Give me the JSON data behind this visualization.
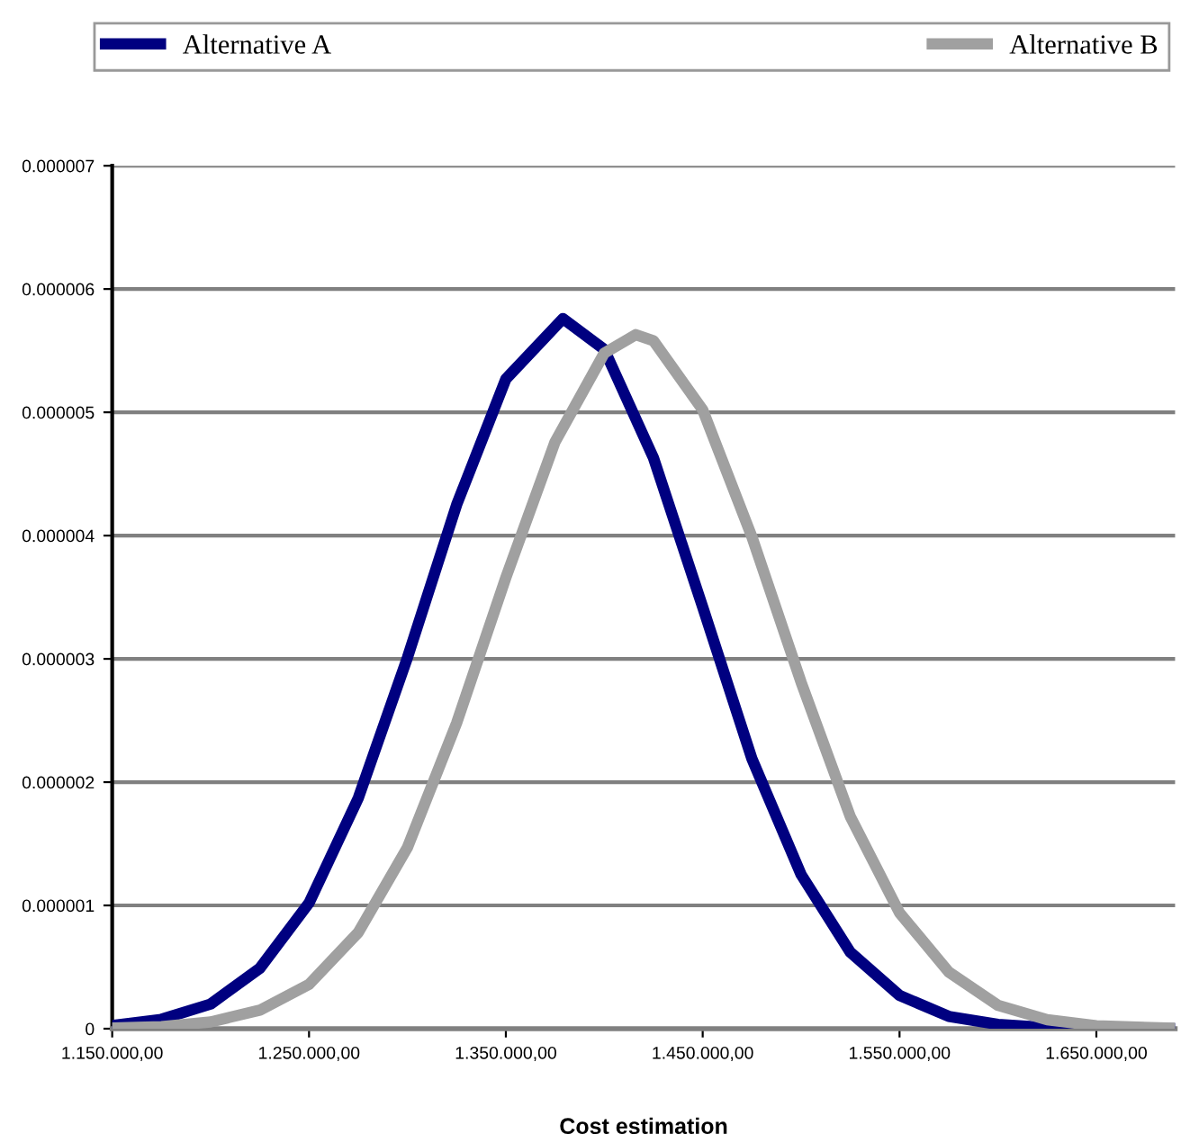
{
  "chart_data": {
    "type": "line",
    "xlabel": "Cost estimation",
    "xlim": [
      1150000,
      1690000
    ],
    "xticks": [
      {
        "value": 1150000,
        "label": "1.150.000,00"
      },
      {
        "value": 1250000,
        "label": "1.250.000,00"
      },
      {
        "value": 1350000,
        "label": "1.350.000,00"
      },
      {
        "value": 1450000,
        "label": "1.450.000,00"
      },
      {
        "value": 1550000,
        "label": "1.550.000,00"
      },
      {
        "value": 1650000,
        "label": "1.650.000,00"
      }
    ],
    "ylim": [
      0,
      7e-06
    ],
    "yticks": [
      0,
      {
        "value": 1e-06,
        "label": "0.000001"
      },
      {
        "value": 2e-06,
        "label": "0.000002"
      },
      {
        "value": 3e-06,
        "label": "0.000003"
      },
      {
        "value": 4e-06,
        "label": "0.000004"
      },
      {
        "value": 5e-06,
        "label": "0.000005"
      },
      {
        "value": 6e-06,
        "label": "0.000006"
      },
      {
        "value": 7e-06,
        "label": "0.000007"
      }
    ],
    "grid": "y",
    "legend": "top",
    "marker": "none",
    "line_style": "solid",
    "series": [
      {
        "name": "Alternative A",
        "color": "#000080",
        "x": [
          1150000,
          1175000,
          1200000,
          1225000,
          1250000,
          1275000,
          1300000,
          1325000,
          1350000,
          1379000,
          1400000,
          1425000,
          1450000,
          1475000,
          1500000,
          1525000,
          1550000,
          1575000,
          1600000,
          1625000,
          1650000,
          1690000
        ],
        "values": [
          2.5e-08,
          7.6e-08,
          2e-07,
          4.9e-07,
          1.02e-06,
          1.87e-06,
          3.01e-06,
          4.25e-06,
          5.27e-06,
          5.76e-06,
          5.51e-06,
          4.63e-06,
          3.42e-06,
          2.19e-06,
          1.25e-06,
          6.2e-07,
          2.7e-07,
          1e-07,
          3.5e-08,
          1e-08,
          3e-09,
          0
        ]
      },
      {
        "name": "Alternative B",
        "color": "#a0a0a0",
        "x": [
          1150000,
          1175000,
          1200000,
          1225000,
          1250000,
          1275000,
          1300000,
          1325000,
          1350000,
          1375000,
          1400000,
          1416000,
          1425000,
          1450000,
          1475000,
          1500000,
          1525000,
          1550000,
          1575000,
          1600000,
          1625000,
          1650000,
          1690000
        ],
        "values": [
          5e-09,
          1.7e-08,
          5.5e-08,
          1.5e-07,
          3.6e-07,
          7.8e-07,
          1.47e-06,
          2.48e-06,
          3.66e-06,
          4.76e-06,
          5.48e-06,
          5.63e-06,
          5.58e-06,
          5.02e-06,
          3.99e-06,
          2.81e-06,
          1.72e-06,
          9.4e-07,
          4.6e-07,
          1.9e-07,
          7.3e-08,
          2.4e-08,
          3e-09
        ]
      }
    ]
  }
}
